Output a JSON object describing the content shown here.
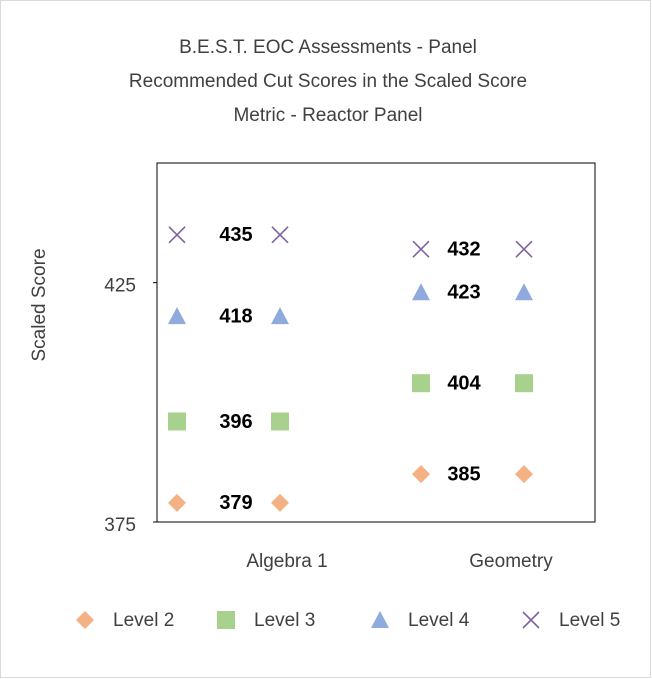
{
  "chart_data": {
    "type": "dot",
    "title": [
      "B.E.S.T. EOC Assessments - Panel",
      "Recommended Cut Scores in the Scaled Score",
      "Metric - Reactor Panel"
    ],
    "y_label": "Scaled Score",
    "categories": [
      "Algebra 1",
      "Geometry"
    ],
    "series": [
      {
        "name": "Level 2",
        "color": "#f4b183",
        "marker": "diamond",
        "values": [
          379,
          385
        ]
      },
      {
        "name": "Level 3",
        "color": "#a9d18e",
        "marker": "square",
        "values": [
          396,
          404
        ]
      },
      {
        "name": "Level 4",
        "color": "#8faadc",
        "marker": "triangle",
        "values": [
          418,
          423
        ]
      },
      {
        "name": "Level 5",
        "color": "#7e62a3",
        "marker": "x",
        "values": [
          435,
          432
        ]
      }
    ],
    "ylim": [
      375,
      450
    ],
    "yticks": [
      375,
      425
    ],
    "legend": "bottom"
  }
}
